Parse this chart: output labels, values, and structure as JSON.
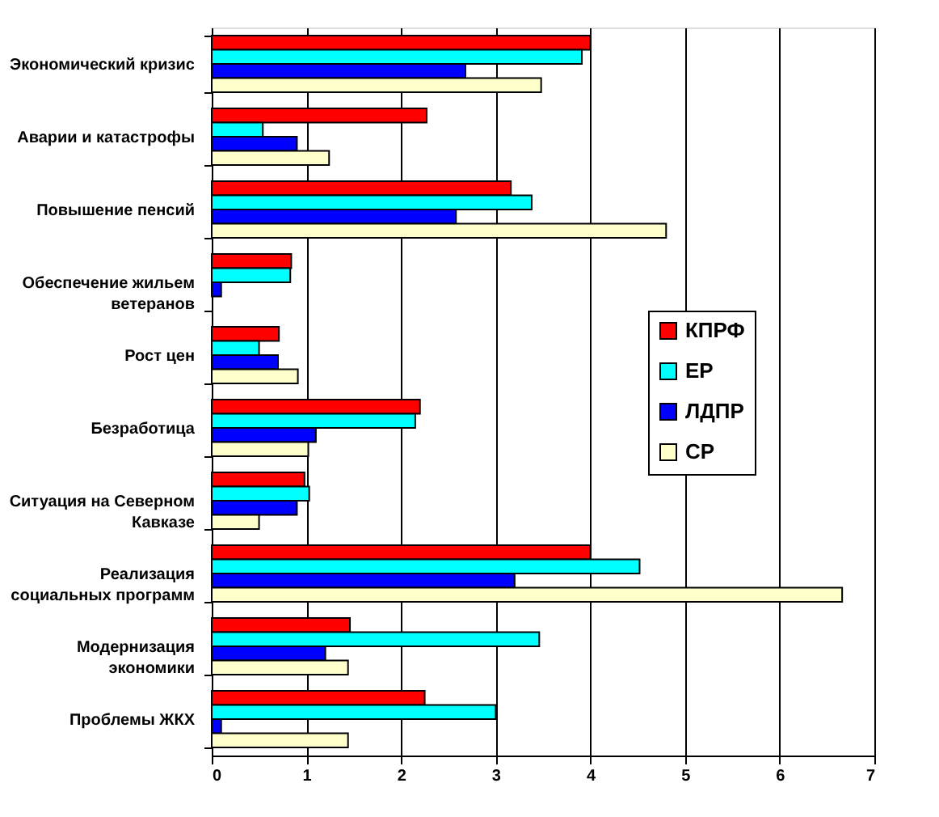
{
  "chart_data": {
    "type": "bar",
    "orientation": "horizontal",
    "categories": [
      "Экономический кризис",
      "Аварии и катастрофы",
      "Повышение пенсий",
      "Обеспечение жильем\nветеранов",
      "Рост цен",
      "Безработица",
      "Ситуация на Северном\nКавказе",
      "Реализация\nсоциальных программ",
      "Модернизация\nэкономики",
      "Проблемы ЖКХ"
    ],
    "series": [
      {
        "name": "КПРФ",
        "color": "#ff0000",
        "values": [
          4.0,
          2.27,
          3.16,
          0.84,
          0.71,
          2.2,
          0.98,
          4.0,
          1.46,
          2.25
        ]
      },
      {
        "name": "ЕР",
        "color": "#00ffff",
        "values": [
          3.91,
          0.54,
          3.38,
          0.83,
          0.5,
          2.15,
          1.03,
          4.52,
          3.46,
          3.0
        ]
      },
      {
        "name": "ЛДПР",
        "color": "#0000ff",
        "values": [
          2.68,
          0.9,
          2.58,
          0.1,
          0.7,
          1.1,
          0.9,
          3.2,
          1.2,
          0.1
        ]
      },
      {
        "name": "СР",
        "color": "#ffffcc",
        "values": [
          3.48,
          1.24,
          4.8,
          null,
          0.91,
          1.02,
          0.5,
          6.66,
          1.44,
          1.44
        ]
      }
    ],
    "xlim": [
      0,
      7
    ],
    "xticks": [
      0,
      1,
      2,
      3,
      4,
      5,
      6,
      7
    ],
    "grid": "x",
    "legend": "right"
  }
}
